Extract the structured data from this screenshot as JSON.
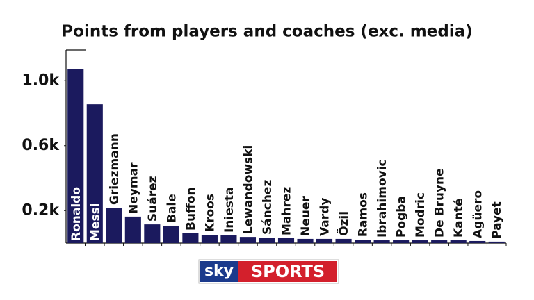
{
  "chart_data": {
    "type": "bar",
    "title": "Points from players and coaches (exc. media)",
    "categories": [
      "Ronaldo",
      "Messi",
      "Griezmann",
      "Neymar",
      "Suárez",
      "Bale",
      "Buffon",
      "Kroos",
      "Iniesta",
      "Lewandowski",
      "Sánchez",
      "Mahrez",
      "Neuer",
      "Vardy",
      "Özil",
      "Ramos",
      "Ibrahimovic",
      "Pogba",
      "Modric",
      "De Bruyne",
      "Kanté",
      "Agüero",
      "Payet"
    ],
    "values": [
      1070,
      855,
      218,
      163,
      115,
      107,
      60,
      51,
      47,
      38,
      34,
      30,
      26,
      26,
      26,
      21,
      17,
      17,
      17,
      17,
      17,
      13,
      9
    ],
    "color": "#1b1a5e",
    "ylim": [
      0,
      1200
    ],
    "yticks": [
      {
        "value": 200,
        "label": "0.2k"
      },
      {
        "value": 600,
        "label": "0.6k"
      },
      {
        "value": 1000,
        "label": "1.0k"
      }
    ],
    "grid": false
  },
  "logo": {
    "left": "sky",
    "right": "SPORTS"
  }
}
